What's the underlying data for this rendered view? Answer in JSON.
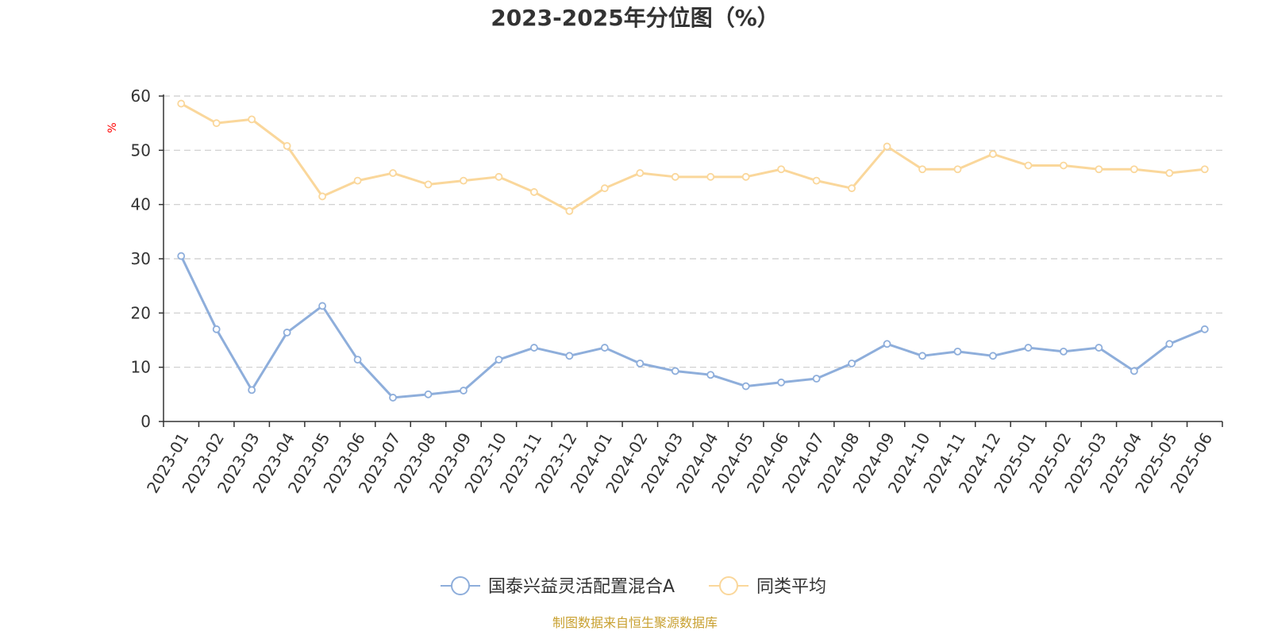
{
  "chart_data": {
    "type": "line",
    "title": "2023-2025年分位图（%）",
    "ylabel": "%",
    "ylim": [
      0,
      60
    ],
    "y_ticks": [
      0,
      10,
      20,
      30,
      40,
      50,
      60
    ],
    "grid": true,
    "legend_position": "bottom",
    "categories": [
      "2023-01",
      "2023-02",
      "2023-03",
      "2023-04",
      "2023-05",
      "2023-06",
      "2023-07",
      "2023-08",
      "2023-09",
      "2023-10",
      "2023-11",
      "2023-12",
      "2024-01",
      "2024-02",
      "2024-03",
      "2024-04",
      "2024-05",
      "2024-06",
      "2024-07",
      "2024-08",
      "2024-09",
      "2024-10",
      "2024-11",
      "2024-12",
      "2025-01",
      "2025-02",
      "2025-03",
      "2025-04",
      "2025-05",
      "2025-06"
    ],
    "series": [
      {
        "name": "国泰兴益灵活配置混合A",
        "color": "#8eaedb",
        "values": [
          30.5,
          17.0,
          5.8,
          16.4,
          21.3,
          11.4,
          4.4,
          5.0,
          5.7,
          11.4,
          13.6,
          12.1,
          13.6,
          10.7,
          9.3,
          8.6,
          6.5,
          7.2,
          7.9,
          10.7,
          14.3,
          12.1,
          12.9,
          12.1,
          13.6,
          12.9,
          13.6,
          9.3,
          14.3,
          17.0
        ]
      },
      {
        "name": "同类平均",
        "color": "#fad79b",
        "values": [
          58.6,
          55.0,
          55.7,
          50.8,
          41.5,
          44.4,
          45.8,
          43.7,
          44.4,
          45.1,
          42.3,
          38.8,
          43.0,
          45.8,
          45.1,
          45.1,
          45.1,
          46.5,
          44.4,
          43.0,
          50.7,
          46.5,
          46.5,
          49.3,
          47.2,
          47.2,
          46.5,
          46.5,
          45.8,
          46.5
        ]
      }
    ]
  },
  "colors": {
    "axis": "#333333",
    "grid": "#cccccc",
    "unit_label": "#ff0000",
    "source": "#c8a030"
  },
  "source_text": "制图数据来自恒生聚源数据库"
}
